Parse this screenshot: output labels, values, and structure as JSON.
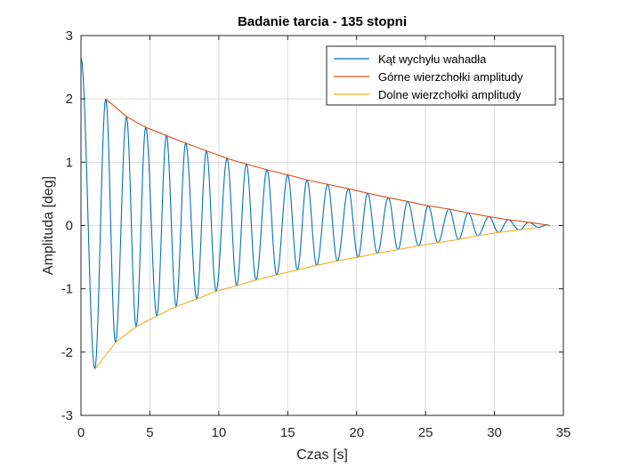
{
  "chart_data": {
    "type": "line",
    "title": "Badanie tarcia - 135 stopni",
    "xlabel": "Czas [s]",
    "ylabel": "Amplituda [deg]",
    "xlim": [
      0,
      35
    ],
    "ylim": [
      -3,
      3
    ],
    "xticks": [
      0,
      5,
      10,
      15,
      20,
      25,
      30,
      35
    ],
    "yticks": [
      -3,
      -2,
      -1,
      0,
      1,
      2,
      3
    ],
    "grid": true,
    "legend_position": "top-right",
    "colors": {
      "angle": "#0072BD",
      "upper": "#D95319",
      "lower": "#EDB120",
      "grid": "#dcdcdc",
      "axis": "#262626"
    },
    "oscillation": {
      "start_time": 0,
      "start_value": 2.65,
      "end_time": 34,
      "first_peak_time": 1.8,
      "first_peak_value": 2.0,
      "first_trough_time": 1.0,
      "first_trough_value": -2.27,
      "period": 1.47
    },
    "series": [
      {
        "name": "Kąt wychyłu wahadła",
        "role": "angle"
      },
      {
        "name": "Górne wierzchołki amplitudy",
        "role": "upper",
        "x": [
          1.8,
          3.3,
          4.7,
          6.2,
          7.6,
          9.1,
          10.6,
          12.0,
          13.5,
          15.0,
          16.4,
          17.9,
          19.4,
          20.8,
          22.3,
          23.7,
          25.2,
          26.7,
          28.1,
          29.6,
          31.0,
          32.5,
          33.8
        ],
        "y": [
          2.0,
          1.72,
          1.55,
          1.42,
          1.3,
          1.18,
          1.06,
          0.97,
          0.88,
          0.8,
          0.72,
          0.65,
          0.58,
          0.51,
          0.44,
          0.38,
          0.31,
          0.26,
          0.2,
          0.14,
          0.09,
          0.05,
          0.01
        ]
      },
      {
        "name": "Dolne wierzchołki amplitudy",
        "role": "lower",
        "x": [
          1.0,
          2.5,
          4.0,
          5.5,
          6.9,
          8.4,
          9.8,
          11.3,
          12.7,
          14.2,
          15.7,
          17.1,
          18.6,
          20.1,
          21.5,
          23.0,
          24.5,
          25.9,
          27.4,
          28.8,
          30.3,
          31.8,
          33.2
        ],
        "y": [
          -2.27,
          -1.85,
          -1.6,
          -1.43,
          -1.28,
          -1.16,
          -1.04,
          -0.95,
          -0.86,
          -0.78,
          -0.7,
          -0.63,
          -0.56,
          -0.5,
          -0.44,
          -0.38,
          -0.32,
          -0.27,
          -0.22,
          -0.16,
          -0.11,
          -0.07,
          -0.03
        ]
      }
    ]
  }
}
